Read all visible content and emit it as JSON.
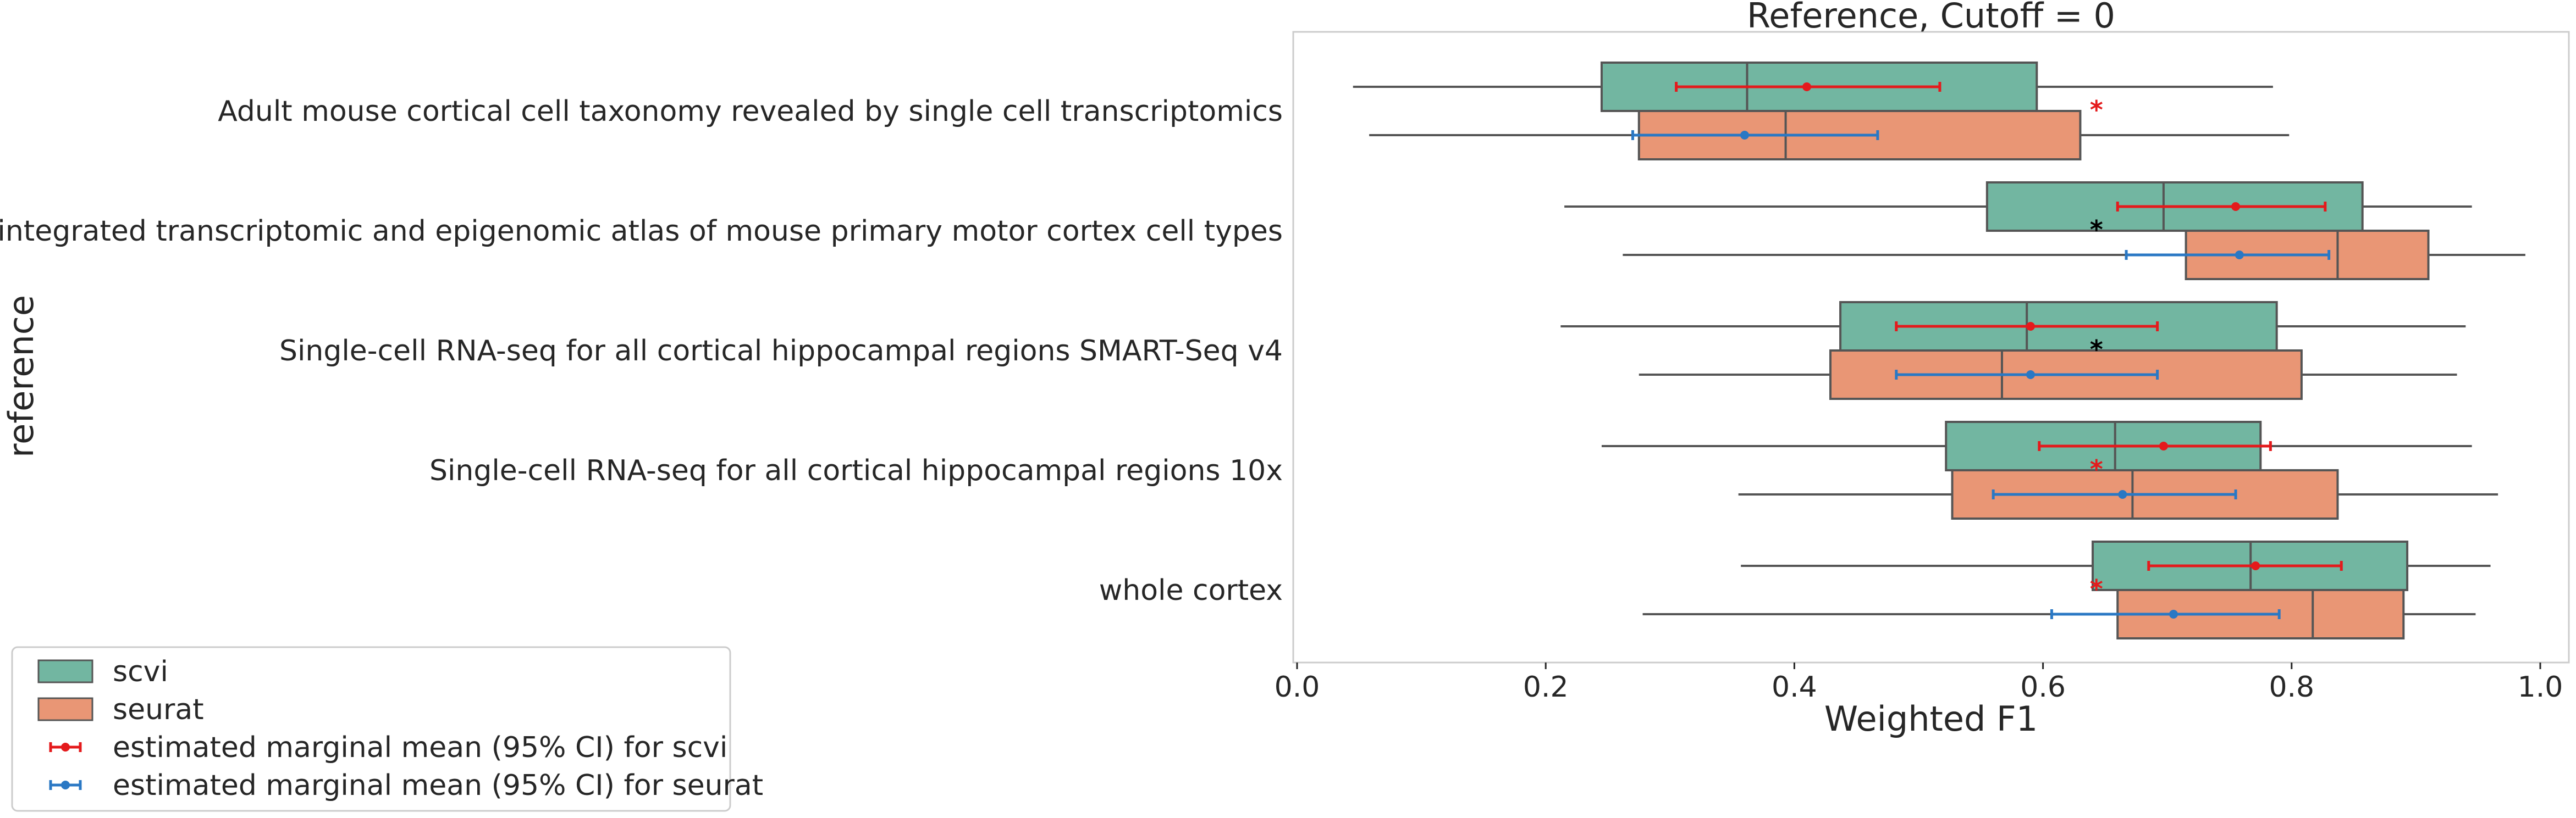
{
  "chart_data": {
    "type": "box",
    "orientation": "horizontal",
    "title": "Reference, Cutoff = 0",
    "xlabel": "Weighted F1",
    "ylabel": "reference",
    "xlim": [
      0.0,
      1.02
    ],
    "xticks": [
      "0.0",
      "0.2",
      "0.4",
      "0.6",
      "0.8",
      "1.0"
    ],
    "xtick_values": [
      0.0,
      0.2,
      0.4,
      0.6,
      0.8,
      1.0
    ],
    "grid": false,
    "legend_position": "lower-left, outside plot",
    "colors": {
      "scvi": "#72b6a1",
      "seurat": "#e99675",
      "scvi_mean": "#e41a1c",
      "seurat_mean": "#2a78c4",
      "box_edge": "#555555"
    },
    "categories": [
      "Adult mouse cortical cell taxonomy revealed by single cell transcriptomics",
      "An integrated transcriptomic and epigenomic atlas of mouse primary motor cortex cell types",
      "Single-cell RNA-seq for all cortical  hippocampal regions SMART-Seq v4",
      "Single-cell RNA-seq for all cortical  hippocampal regions 10x",
      "whole cortex"
    ],
    "series": [
      {
        "name": "scvi",
        "boxes": [
          {
            "whislo": 0.045,
            "q1": 0.245,
            "med": 0.362,
            "q3": 0.595,
            "whishi": 0.785
          },
          {
            "whislo": 0.215,
            "q1": 0.555,
            "med": 0.697,
            "q3": 0.857,
            "whishi": 0.945
          },
          {
            "whislo": 0.212,
            "q1": 0.437,
            "med": 0.587,
            "q3": 0.788,
            "whishi": 0.94
          },
          {
            "whislo": 0.245,
            "q1": 0.522,
            "med": 0.658,
            "q3": 0.775,
            "whishi": 0.945
          },
          {
            "whislo": 0.357,
            "q1": 0.64,
            "med": 0.767,
            "q3": 0.893,
            "whishi": 0.96
          }
        ]
      },
      {
        "name": "seurat",
        "boxes": [
          {
            "whislo": 0.058,
            "q1": 0.275,
            "med": 0.393,
            "q3": 0.63,
            "whishi": 0.798
          },
          {
            "whislo": 0.262,
            "q1": 0.715,
            "med": 0.837,
            "q3": 0.91,
            "whishi": 0.988
          },
          {
            "whislo": 0.275,
            "q1": 0.429,
            "med": 0.567,
            "q3": 0.808,
            "whishi": 0.933
          },
          {
            "whislo": 0.355,
            "q1": 0.527,
            "med": 0.672,
            "q3": 0.837,
            "whishi": 0.966
          },
          {
            "whislo": 0.278,
            "q1": 0.66,
            "med": 0.817,
            "q3": 0.89,
            "whishi": 0.948
          }
        ]
      }
    ],
    "marginal_means": [
      {
        "name": "estimated marginal mean (95% CI) for scvi",
        "points": [
          {
            "mean": 0.41,
            "lo": 0.305,
            "hi": 0.517
          },
          {
            "mean": 0.755,
            "lo": 0.66,
            "hi": 0.827
          },
          {
            "mean": 0.59,
            "lo": 0.482,
            "hi": 0.692
          },
          {
            "mean": 0.697,
            "lo": 0.597,
            "hi": 0.783
          },
          {
            "mean": 0.771,
            "lo": 0.685,
            "hi": 0.84
          }
        ]
      },
      {
        "name": "estimated marginal mean (95% CI) for seurat",
        "points": [
          {
            "mean": 0.36,
            "lo": 0.27,
            "hi": 0.467
          },
          {
            "mean": 0.758,
            "lo": 0.667,
            "hi": 0.83
          },
          {
            "mean": 0.59,
            "lo": 0.482,
            "hi": 0.692
          },
          {
            "mean": 0.664,
            "lo": 0.56,
            "hi": 0.755
          },
          {
            "mean": 0.705,
            "lo": 0.607,
            "hi": 0.79
          }
        ]
      }
    ],
    "significance_marks": [
      {
        "text": "*",
        "x": 0.643,
        "category_index": 0,
        "color": "#e41a1c"
      },
      {
        "text": "*",
        "x": 0.643,
        "category_index": 1,
        "color": "#000000"
      },
      {
        "text": "*",
        "x": 0.643,
        "category_index": 2,
        "color": "#000000"
      },
      {
        "text": "*",
        "x": 0.643,
        "category_index": 3,
        "color": "#e41a1c"
      },
      {
        "text": "*",
        "x": 0.643,
        "category_index": 4,
        "color": "#e41a1c"
      }
    ],
    "legend": [
      {
        "label": "scvi",
        "kind": "patch",
        "color": "#72b6a1"
      },
      {
        "label": "seurat",
        "kind": "patch",
        "color": "#e99675"
      },
      {
        "label": "estimated marginal mean (95% CI) for scvi",
        "kind": "errorbar",
        "color": "#e41a1c"
      },
      {
        "label": "estimated marginal mean (95% CI) for seurat",
        "kind": "errorbar",
        "color": "#2a78c4"
      }
    ]
  }
}
